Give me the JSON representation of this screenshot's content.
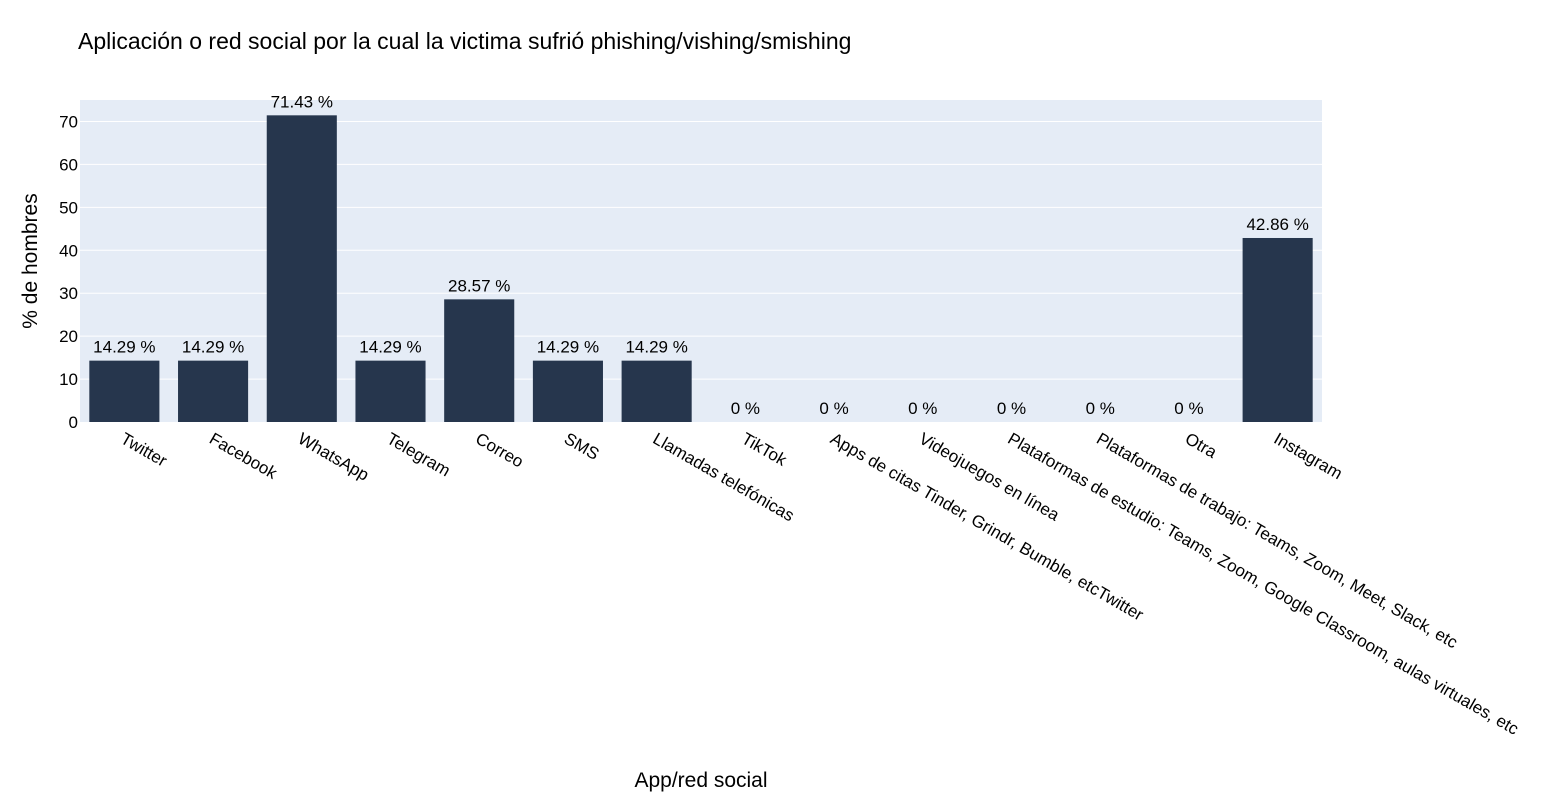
{
  "chart_data": {
    "type": "bar",
    "title": "Aplicación o red social por la cual la victima sufrió phishing/vishing/smishing",
    "xlabel": "App/red social",
    "ylabel": "% de hombres",
    "categories": [
      "Twitter",
      "Facebook",
      "WhatsApp",
      "Telegram",
      "Correo",
      "SMS",
      "Llamadas telefónicas",
      "TikTok",
      "Apps de citas Tinder, Grindr, Bumble, etcTwitter",
      "Videojuegos en línea",
      "Plataformas de estudio: Teams, Zoom, Google Classroom, aulas virtuales, etc",
      "Plataformas de trabajo: Teams, Zoom, Meet, Slack, etc",
      "Otra",
      "Instagram"
    ],
    "values": [
      14.29,
      14.29,
      71.43,
      14.29,
      28.57,
      14.29,
      14.29,
      0,
      0,
      0,
      0,
      0,
      0,
      42.86
    ],
    "data_labels": [
      "14.29 %",
      "14.29 %",
      "71.43 %",
      "14.29 %",
      "28.57 %",
      "14.29 %",
      "14.29 %",
      "0 %",
      "0 %",
      "0 %",
      "0 %",
      "0 %",
      "0 %",
      "42.86 %"
    ],
    "ylim": [
      0,
      75
    ],
    "yticks": [
      0,
      10,
      20,
      30,
      40,
      50,
      60,
      70
    ],
    "grid": true,
    "legend": "none",
    "colors": {
      "bar": "#26364d",
      "plot_background": "#e5ecf6",
      "gridline": "#ffffff",
      "text": "#000000"
    }
  }
}
